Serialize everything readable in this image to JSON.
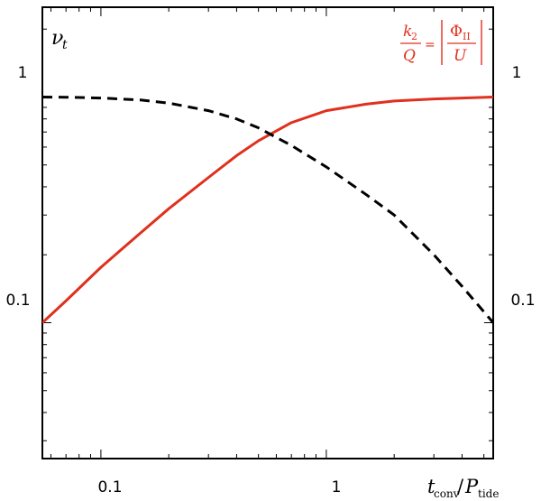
{
  "chart_data": {
    "type": "line",
    "x_scale": "log",
    "y_scale": "log",
    "xlim": [
      0.055,
      5.5
    ],
    "ylim": [
      0.025,
      2.5
    ],
    "x_ticks": [
      0.1,
      1
    ],
    "x_tick_labels": [
      "0.1",
      "1"
    ],
    "y_ticks": [
      0.1,
      1
    ],
    "y_tick_labels": [
      "0.1",
      "1"
    ],
    "xlabel": {
      "t": "t",
      "t_sub": "conv",
      "slash": "/",
      "p": "P",
      "p_sub": "tide"
    },
    "ylabel": {
      "nu": "ν",
      "sub": "t"
    },
    "annotation": {
      "k": "k",
      "k_sub": "2",
      "q": "Q",
      "equals": "=",
      "phi": "Φ",
      "phi_sub": "II",
      "u": "U"
    },
    "grid": false,
    "series": [
      {
        "style": "solid",
        "color": "#e0301e",
        "x": [
          0.055,
          0.07,
          0.1,
          0.15,
          0.2,
          0.3,
          0.4,
          0.5,
          0.7,
          1.0,
          1.5,
          2.0,
          3.0,
          4.0,
          5.5
        ],
        "y": [
          0.1,
          0.125,
          0.176,
          0.25,
          0.32,
          0.44,
          0.55,
          0.64,
          0.77,
          0.87,
          0.93,
          0.96,
          0.98,
          0.99,
          1.0
        ]
      },
      {
        "style": "dashed",
        "color": "#000000",
        "x": [
          0.055,
          0.07,
          0.1,
          0.15,
          0.2,
          0.3,
          0.4,
          0.5,
          0.7,
          1.0,
          1.5,
          2.0,
          3.0,
          4.0,
          5.5
        ],
        "y": [
          1.0,
          0.998,
          0.99,
          0.97,
          0.94,
          0.87,
          0.8,
          0.73,
          0.61,
          0.49,
          0.37,
          0.3,
          0.2,
          0.145,
          0.1
        ]
      }
    ]
  }
}
